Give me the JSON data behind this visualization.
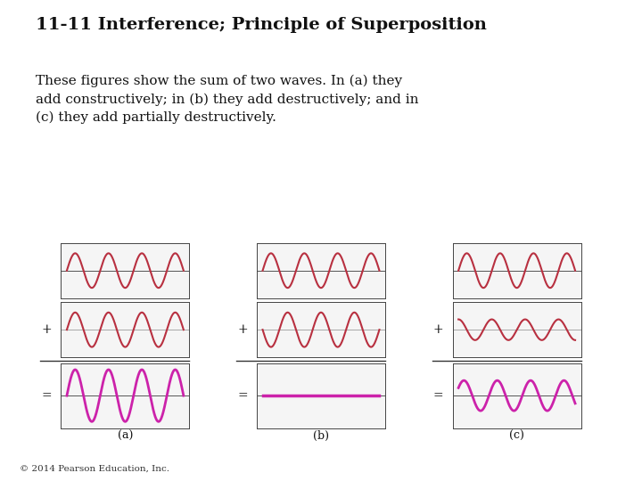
{
  "title": "11-11 Interference; Principle of Superposition",
  "body_text": "These figures show the sum of two waves. In (a) they\nadd constructively; in (b) they add destructively; and in\n(c) they add partially destructively.",
  "copyright": "© 2014 Pearson Education, Inc.",
  "background_color": "#ffffff",
  "title_fontsize": 14,
  "body_fontsize": 11,
  "copyright_fontsize": 7.5,
  "wave_color_dark": "#b83040",
  "wave_color_result_a": "#cc22aa",
  "wave_color_result_b": "#cc22aa",
  "wave_color_result_c": "#cc22aa",
  "panel_bg": "#f5f5f5",
  "col_labels": [
    "(a)",
    "(b)",
    "(c)"
  ],
  "sign_plus": "+",
  "sign_equals": "=",
  "num_cycles": 3.5,
  "wave1_amp": 1.0,
  "wave2_amp_a": 1.0,
  "wave2_amp_b": 1.0,
  "wave2_amp_c": 0.6,
  "wave2_phase_b": 3.14159265,
  "wave2_phase_c": 1.5707963,
  "result_lw": 2.0,
  "wave_lw": 1.5
}
